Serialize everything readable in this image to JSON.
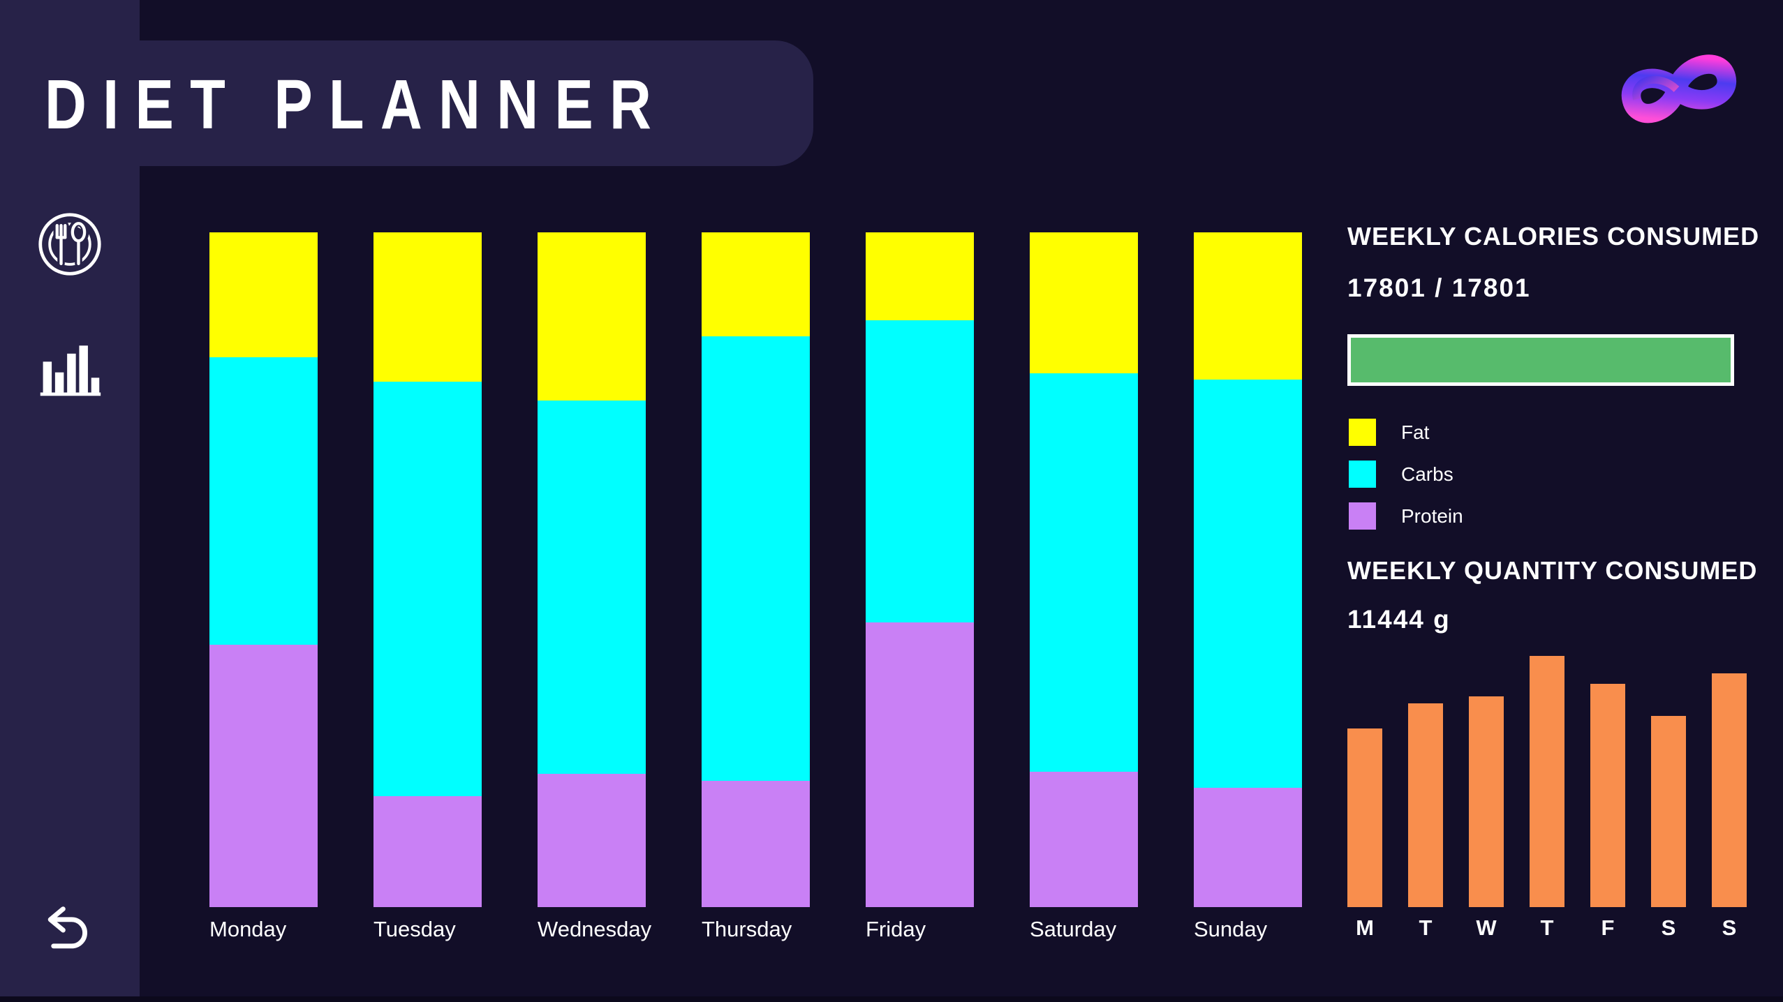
{
  "app": {
    "title": "DIET PLANNER"
  },
  "sidebar": {
    "items": [
      {
        "icon": "plate-utensils",
        "label": "meals"
      },
      {
        "icon": "bar-chart",
        "label": "stats"
      },
      {
        "icon": "undo-arrow",
        "label": "back"
      }
    ]
  },
  "right_panel": {
    "calories_title": "WEEKLY CALORIES CONSUMED",
    "calories_value": "17801 / 17801",
    "progress": {
      "percent": 100,
      "fill_color": "#57BB6C",
      "border_color": "#FFFFFF"
    },
    "legend": [
      {
        "label": "Fat",
        "color": "#FFFF00"
      },
      {
        "label": "Carbs",
        "color": "#00FFFF"
      },
      {
        "label": "Protein",
        "color": "#C980F5"
      }
    ],
    "quantity_title": "WEEKLY QUANTITY CONSUMED",
    "quantity_value": "11444 g"
  },
  "colors": {
    "background": "#120E28",
    "panel": "#272248",
    "fat": "#FFFF00",
    "carbs": "#00FFFF",
    "protein": "#C980F5",
    "orange": "#F98E4D",
    "green": "#57BB6C",
    "text": "#FFFFFF"
  },
  "chart_data": [
    {
      "type": "bar",
      "stacked": true,
      "units": "percent_of_day_total",
      "title": "Daily macro composition (stacked, full-height bars)",
      "categories": [
        "Monday",
        "Tuesday",
        "Wednesday",
        "Thursday",
        "Friday",
        "Saturday",
        "Sunday"
      ],
      "stack_order_bottom_to_top": [
        "Protein",
        "Carbs",
        "Fat"
      ],
      "series": [
        {
          "name": "Fat",
          "color": "#FFFF00",
          "values": [
            18.5,
            22.1,
            24.9,
            15.4,
            13.0,
            20.9,
            21.8
          ]
        },
        {
          "name": "Carbs",
          "color": "#00FFFF",
          "values": [
            42.6,
            61.5,
            55.4,
            65.9,
            44.8,
            59.0,
            60.5
          ]
        },
        {
          "name": "Protein",
          "color": "#C980F5",
          "values": [
            38.9,
            16.4,
            19.7,
            18.7,
            42.2,
            20.1,
            17.7
          ]
        }
      ],
      "grid": false,
      "legend_position": "right"
    },
    {
      "type": "bar",
      "title": "Weekly quantity consumed per day",
      "categories": [
        "M",
        "T",
        "W",
        "T",
        "F",
        "S",
        "S"
      ],
      "values": [
        71,
        81,
        84,
        100,
        89,
        76,
        93
      ],
      "units": "percent_of_max_bar_height",
      "color": "#F98E4D",
      "grid": false
    }
  ]
}
